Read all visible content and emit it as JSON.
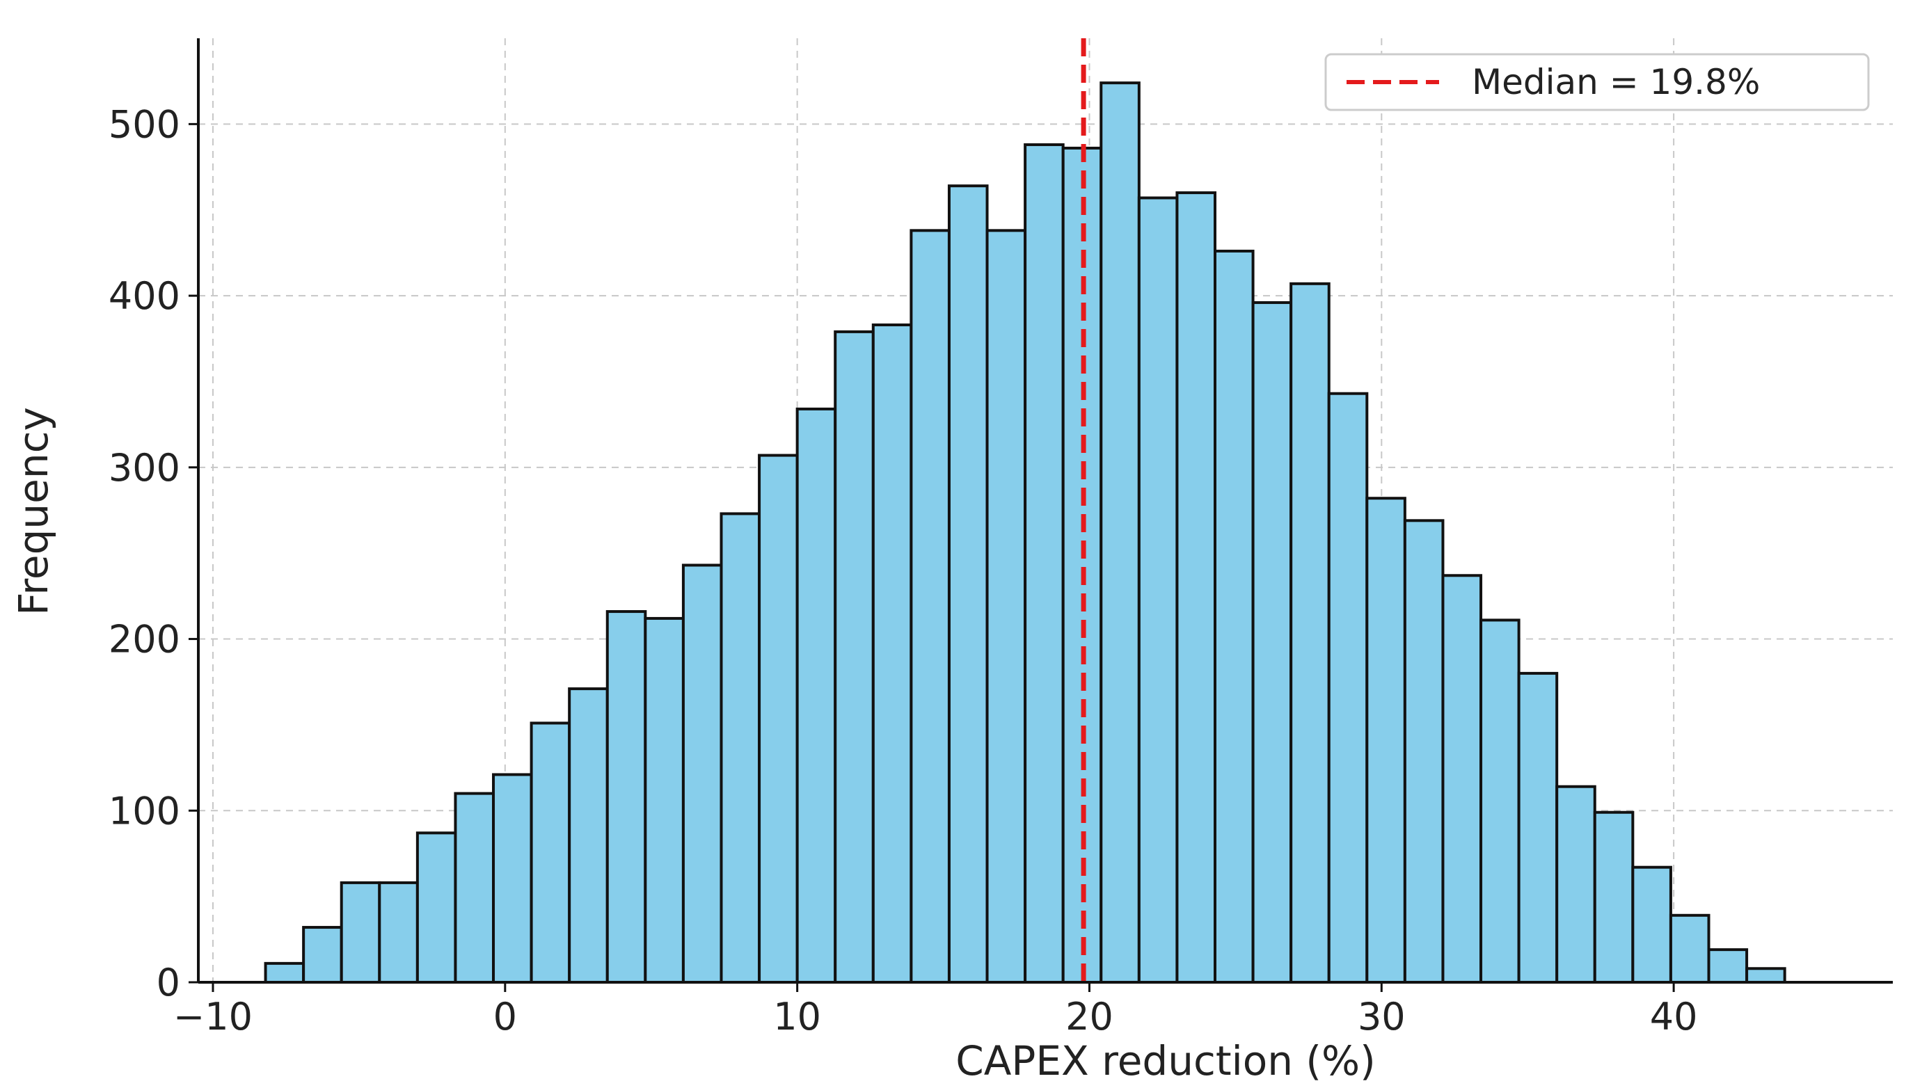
{
  "chart_data": {
    "type": "bar",
    "subtype": "histogram",
    "xlabel": "CAPEX reduction (%)",
    "ylabel": "Frequency",
    "xlim": [
      -10.5,
      47.5
    ],
    "ylim": [
      0,
      550
    ],
    "xticks": [
      -10,
      0,
      10,
      20,
      30,
      40
    ],
    "xtick_labels": [
      "−10",
      "0",
      "10",
      "20",
      "30",
      "40"
    ],
    "yticks": [
      0,
      100,
      200,
      300,
      400,
      500
    ],
    "ytick_labels": [
      "0",
      "100",
      "200",
      "300",
      "400",
      "500"
    ],
    "grid": true,
    "bar_color": "#87ceeb",
    "bar_edge_color": "#111111",
    "bins": {
      "start": -8.2,
      "width": 1.3,
      "counts": [
        11,
        32,
        58,
        58,
        87,
        110,
        121,
        151,
        171,
        216,
        212,
        243,
        273,
        307,
        334,
        379,
        383,
        438,
        464,
        438,
        488,
        486,
        524,
        457,
        460,
        426,
        396,
        407,
        343,
        282,
        269,
        237,
        211,
        180,
        114,
        99,
        67,
        39,
        19,
        8
      ]
    },
    "median": {
      "value": 19.8,
      "color": "#e41a1c",
      "linestyle": "dashed",
      "legend_label": "Median = 19.8%"
    },
    "legend_position": "top-right"
  }
}
